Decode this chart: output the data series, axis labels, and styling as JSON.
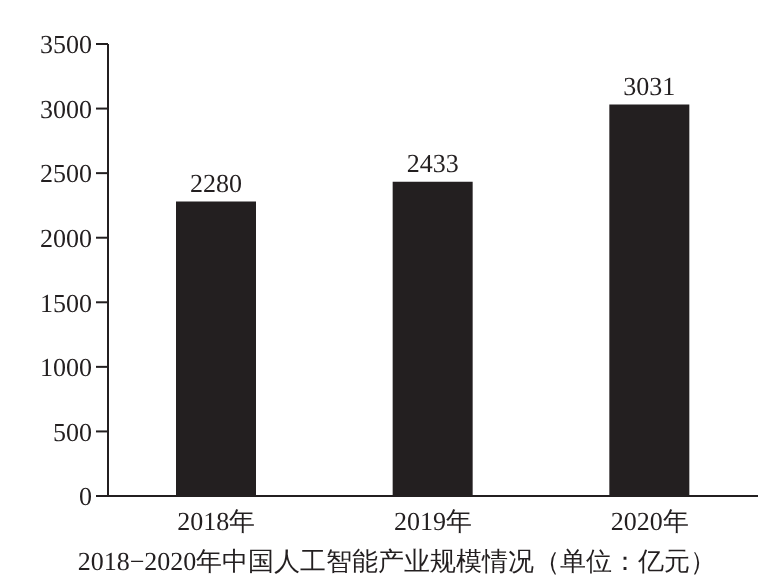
{
  "chart_data": {
    "type": "bar",
    "title": "2018−2020年中国人工智能产业规模情况（单位：亿元）",
    "categories": [
      "2018年",
      "2019年",
      "2020年"
    ],
    "values": [
      2280,
      2433,
      3031
    ],
    "color": "#231f20",
    "ylim": [
      0,
      3500
    ],
    "yticks": [
      0,
      500,
      1000,
      1500,
      2000,
      2500,
      3000,
      3500
    ],
    "grid": false,
    "data_labels": true
  }
}
